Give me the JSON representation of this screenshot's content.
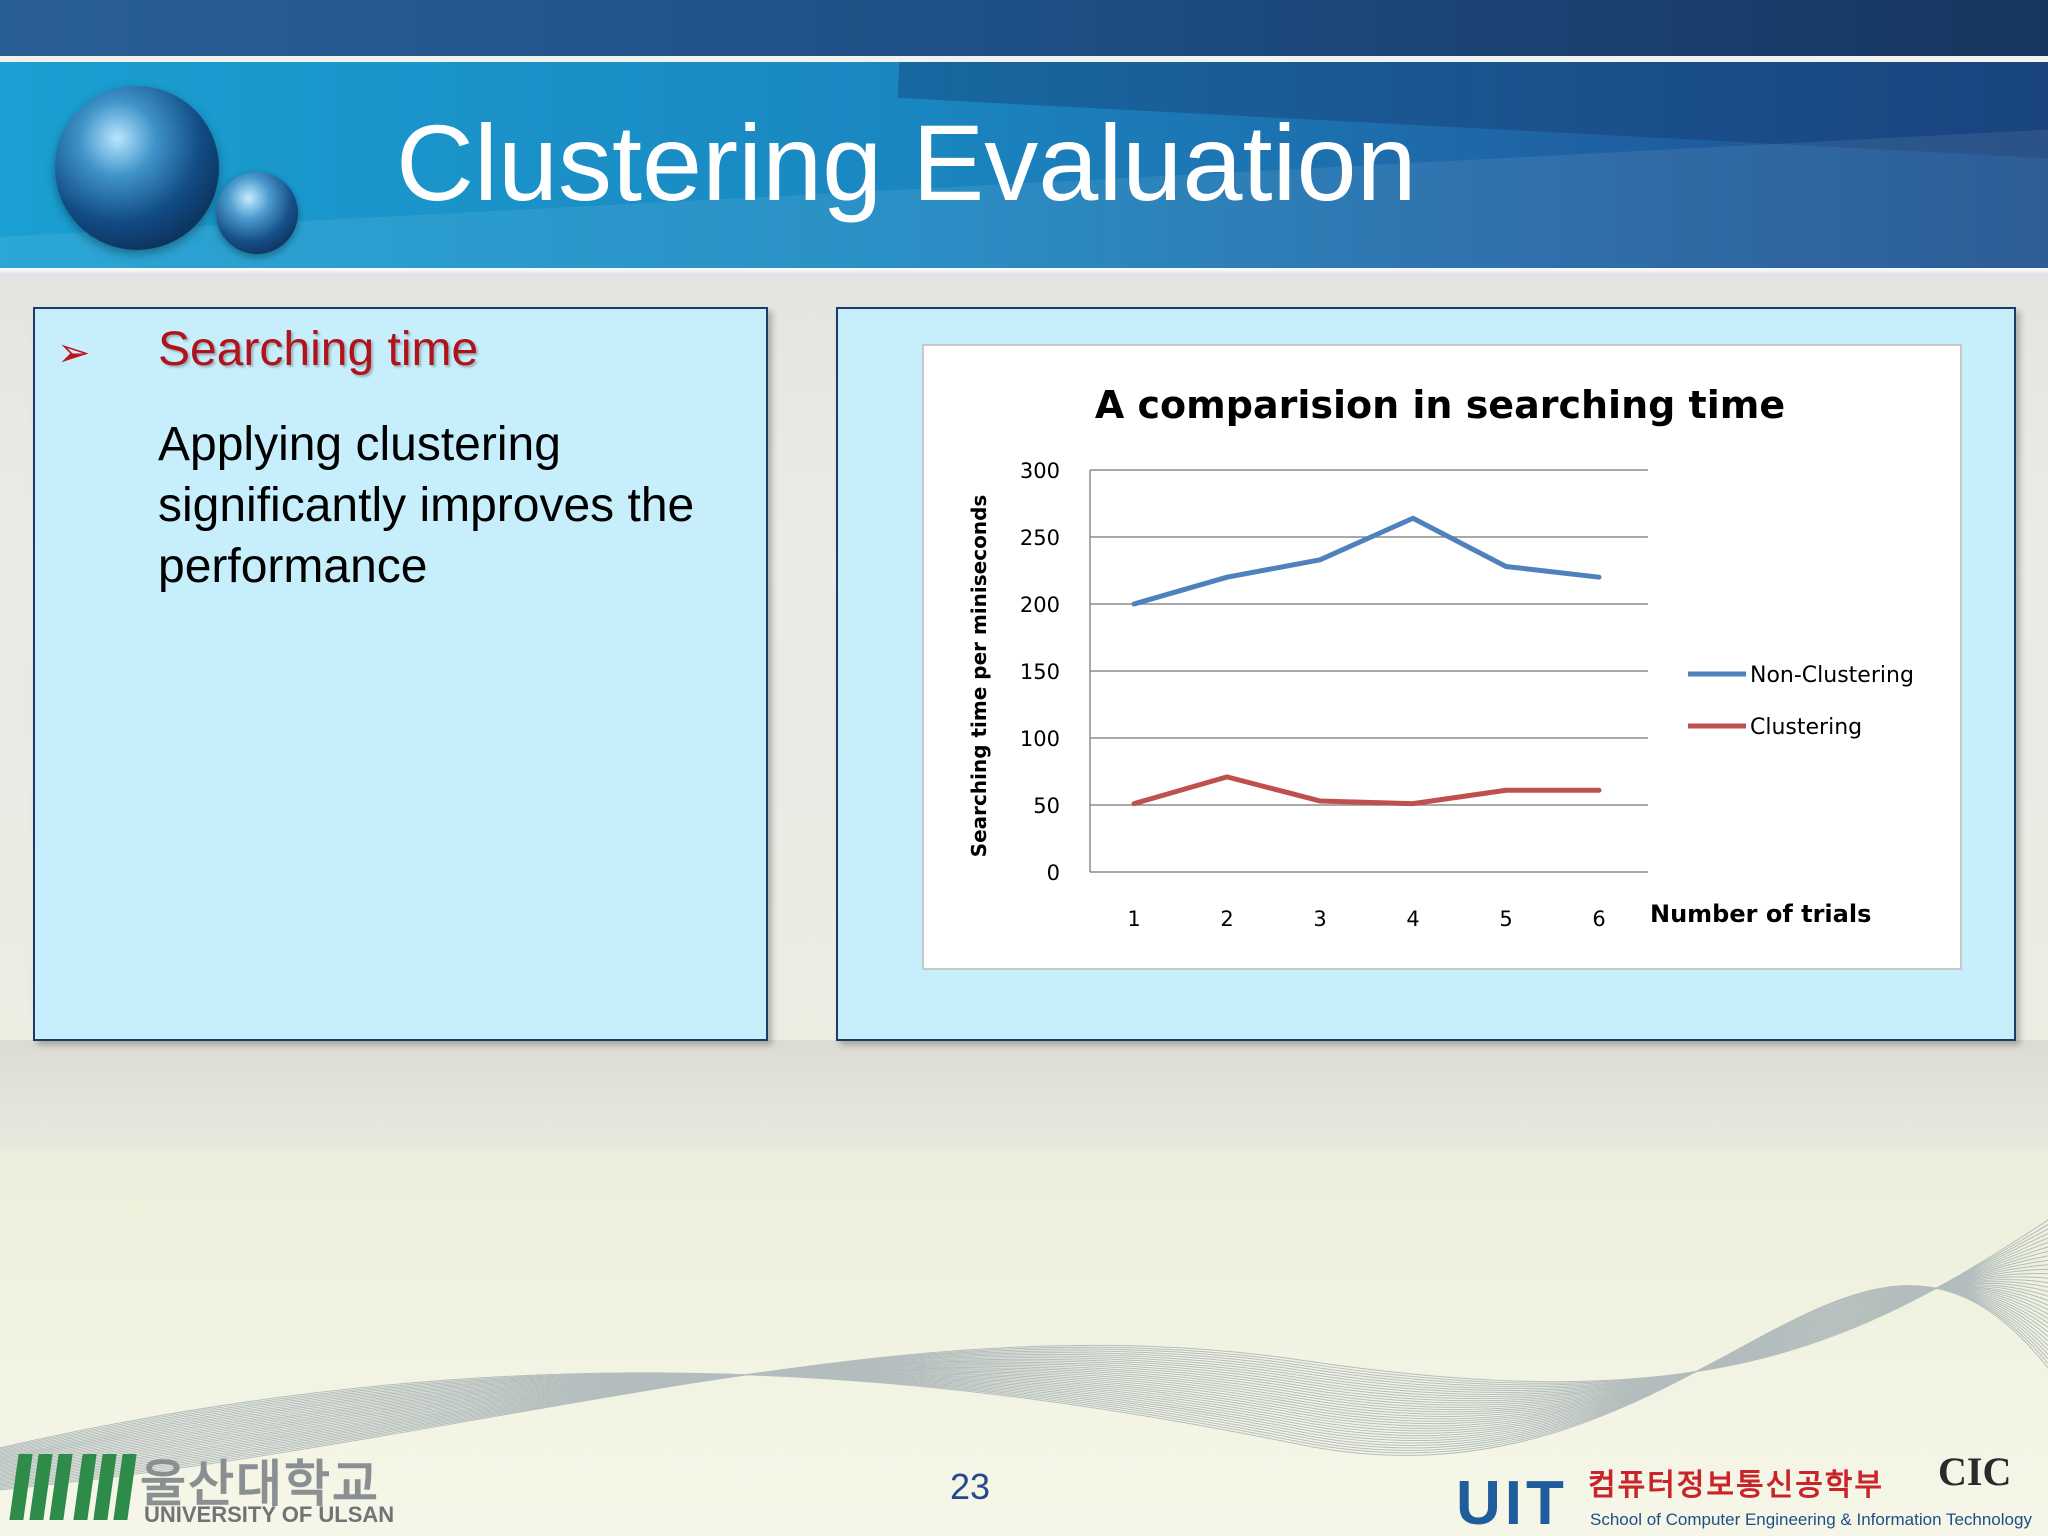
{
  "slide": {
    "title": "Clustering Evaluation",
    "page_number": "23"
  },
  "left_box": {
    "bullet_icon": "arrow-bullet-icon",
    "heading": "Searching time",
    "body": "Applying clustering significantly improves the performance"
  },
  "chart_data": {
    "type": "line",
    "title": "A comparision in searching time",
    "xlabel": "Number of trials",
    "ylabel": "Searching time per miniseconds",
    "categories": [
      "1",
      "2",
      "3",
      "4",
      "5",
      "6"
    ],
    "ylim": [
      0,
      300
    ],
    "yticks": [
      "0",
      "50",
      "100",
      "150",
      "200",
      "250",
      "300"
    ],
    "grid": true,
    "legend_position": "right",
    "series": [
      {
        "name": "Non-Clustering",
        "color": "#4f81bd",
        "values": [
          200,
          220,
          233,
          264,
          228,
          220
        ]
      },
      {
        "name": "Clustering",
        "color": "#c0504d",
        "values": [
          51,
          71,
          53,
          51,
          61,
          61
        ]
      }
    ]
  },
  "footer": {
    "left_logo": {
      "korean": "울산대학교",
      "english": "UNIVERSITY OF ULSAN"
    },
    "right_logo": {
      "letters": "UIT",
      "korean": "컴퓨터정보통신공학부",
      "english": "School of Computer Engineering & Information Technology",
      "mark": "CIC"
    }
  },
  "colors": {
    "header_blue": "#1a86c0",
    "box_fill": "#c6eefb",
    "heading_red": "#b0131b"
  }
}
